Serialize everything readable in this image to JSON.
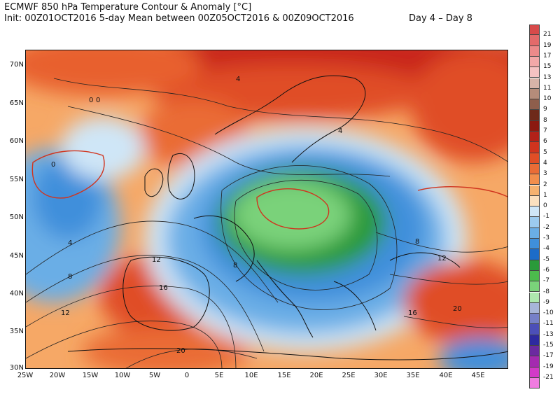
{
  "header": {
    "title": "ECMWF 850 hPa Temperature Contour & Anomaly [°C]",
    "subtitle": "Init: 00Z01OCT2016 5-day Mean between 00Z05OCT2016 & 00Z09OCT2016",
    "days": "Day 4 – Day 8"
  },
  "map": {
    "lat_labels": [
      "70N",
      "65N",
      "60N",
      "55N",
      "50N",
      "45N",
      "40N",
      "35N",
      "30N"
    ],
    "lon_labels": [
      "25W",
      "20W",
      "15W",
      "10W",
      "5W",
      "0",
      "5E",
      "10E",
      "15E",
      "20E",
      "25E",
      "30E",
      "35E",
      "40E",
      "45E"
    ],
    "contour_labels": [
      "0",
      "0",
      "4",
      "4",
      "8",
      "12",
      "12",
      "16",
      "20",
      "4",
      "8",
      "12",
      "16",
      "20",
      "8",
      "0"
    ]
  },
  "colorbar": {
    "labels": [
      "21",
      "19",
      "17",
      "15",
      "13",
      "11",
      "10",
      "9",
      "8",
      "7",
      "6",
      "5",
      "4",
      "3",
      "2",
      "1",
      "0",
      "-1",
      "-2",
      "-3",
      "-4",
      "-5",
      "-6",
      "-7",
      "-8",
      "-9",
      "-10",
      "-11",
      "-13",
      "-15",
      "-17",
      "-19",
      "-21"
    ],
    "colors": [
      "#d84a4a",
      "#e36a6a",
      "#ec8a8a",
      "#f2a8a8",
      "#f5c2c2",
      "#d7b3a8",
      "#b58c7a",
      "#8e5e4c",
      "#6e2a1a",
      "#8b1a10",
      "#b22118",
      "#d0341e",
      "#e04e26",
      "#ea6c36",
      "#f28e4c",
      "#f6b270",
      "#fbe0bf",
      "#cfe6f7",
      "#9ccbef",
      "#6aaee6",
      "#3f8fdb",
      "#1d6cc8",
      "#2a9a3a",
      "#4cbb4c",
      "#7ad27a",
      "#aee8ae",
      "#a7b5d8",
      "#7680c8",
      "#4c4fb8",
      "#2e2aa0",
      "#6b2aa0",
      "#a42ab0",
      "#d23ac8",
      "#f07ce0"
    ]
  }
}
